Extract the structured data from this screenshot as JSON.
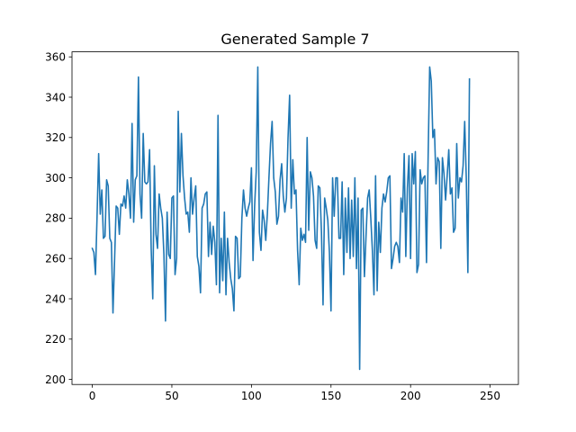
{
  "chart_data": {
    "type": "line",
    "title": "Generated Sample 7",
    "xlabel": "",
    "ylabel": "",
    "xlim": [
      -12.75,
      267.75
    ],
    "ylim": [
      197.5,
      362.5
    ],
    "xticks": [
      0,
      50,
      100,
      150,
      200,
      250
    ],
    "yticks": [
      200,
      220,
      240,
      260,
      280,
      300,
      320,
      340,
      360
    ],
    "grid": false,
    "legend": "none",
    "series": [
      {
        "color": "#1f77b4",
        "x_start": 0,
        "x_step": 1,
        "values": [
          265,
          263,
          252,
          281,
          312,
          282,
          294,
          270,
          271,
          299,
          296,
          270,
          268,
          233,
          259,
          286,
          285,
          272,
          287,
          286,
          291,
          285,
          299,
          292,
          280,
          327,
          278,
          299,
          301,
          350,
          292,
          280,
          322,
          298,
          297,
          298,
          314,
          265,
          240,
          306,
          272,
          265,
          292,
          285,
          280,
          262,
          229,
          283,
          262,
          260,
          290,
          291,
          252,
          260,
          333,
          293,
          322,
          301,
          290,
          282,
          283,
          273,
          300,
          282,
          290,
          296,
          261,
          256,
          243,
          285,
          287,
          292,
          293,
          261,
          278,
          262,
          276,
          268,
          247,
          331,
          243,
          270,
          249,
          283,
          242,
          270,
          258,
          250,
          245,
          234,
          271,
          270,
          250,
          251,
          280,
          294,
          285,
          281,
          285,
          288,
          305,
          259,
          286,
          303,
          355,
          273,
          264,
          284,
          279,
          269,
          282,
          300,
          317,
          328,
          300,
          293,
          277,
          281,
          299,
          307,
          291,
          283,
          290,
          320,
          341,
          285,
          309,
          292,
          294,
          264,
          247,
          275,
          269,
          272,
          268,
          320,
          274,
          303,
          300,
          291,
          269,
          265,
          296,
          295,
          273,
          237,
          290,
          285,
          279,
          263,
          234,
          300,
          281,
          300,
          300,
          270,
          270,
          298,
          252,
          290,
          263,
          295,
          260,
          289,
          261,
          300,
          255,
          290,
          205,
          284,
          285,
          251,
          271,
          290,
          294,
          280,
          264,
          242,
          301,
          244,
          278,
          263,
          285,
          292,
          288,
          293,
          300,
          301,
          255,
          260,
          266,
          268,
          266,
          258,
          290,
          283,
          312,
          261,
          295,
          311,
          260,
          312,
          297,
          313,
          253,
          257,
          304,
          297,
          300,
          301,
          258,
          309,
          355,
          348,
          320,
          324,
          297,
          310,
          308,
          265,
          310,
          302,
          289,
          301,
          314,
          292,
          295,
          273,
          275,
          317,
          290,
          300,
          298,
          306,
          328,
          300,
          253,
          349
        ]
      }
    ]
  }
}
